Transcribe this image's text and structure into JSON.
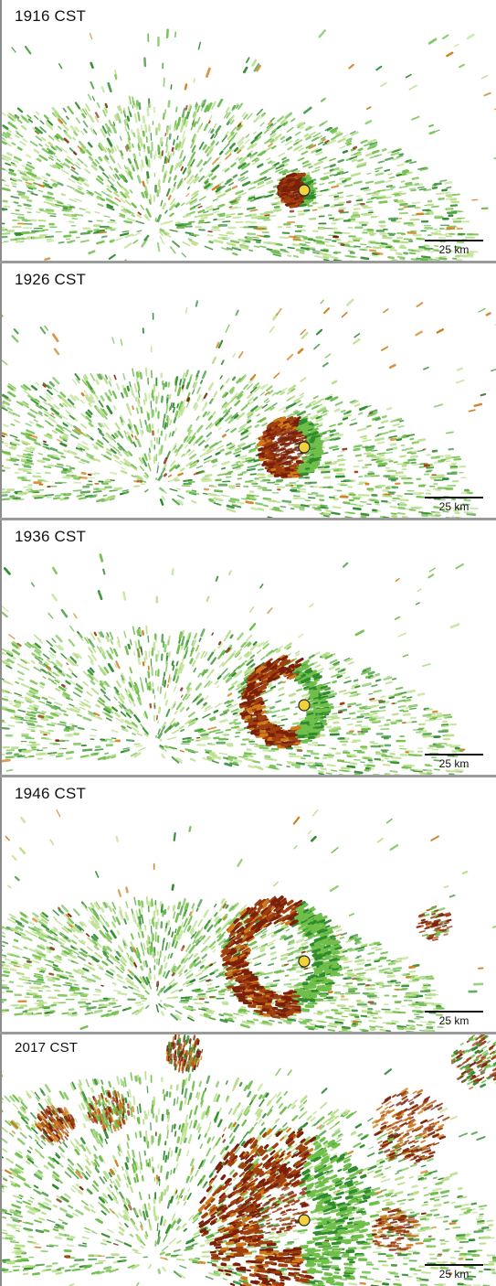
{
  "panels": [
    {
      "time": "1916 CST",
      "scale": "25 km",
      "ring_stage": 0
    },
    {
      "time": "1926 CST",
      "scale": "25 km",
      "ring_stage": 1
    },
    {
      "time": "1936 CST",
      "scale": "25 km",
      "ring_stage": 2
    },
    {
      "time": "1946 CST",
      "scale": "25 km",
      "ring_stage": 3
    },
    {
      "time": "2017 CST",
      "scale": "25 km",
      "ring_stage": 4
    }
  ],
  "colors": {
    "green_light": "#b9df8a",
    "green_mid": "#6fbf4a",
    "green_dark": "#2e8b2e",
    "brown_dark": "#7a1f0a",
    "brown": "#a0400f",
    "orange": "#d07a18",
    "radar_site": "#ffffff",
    "roost_marker": "#f2d23a"
  }
}
